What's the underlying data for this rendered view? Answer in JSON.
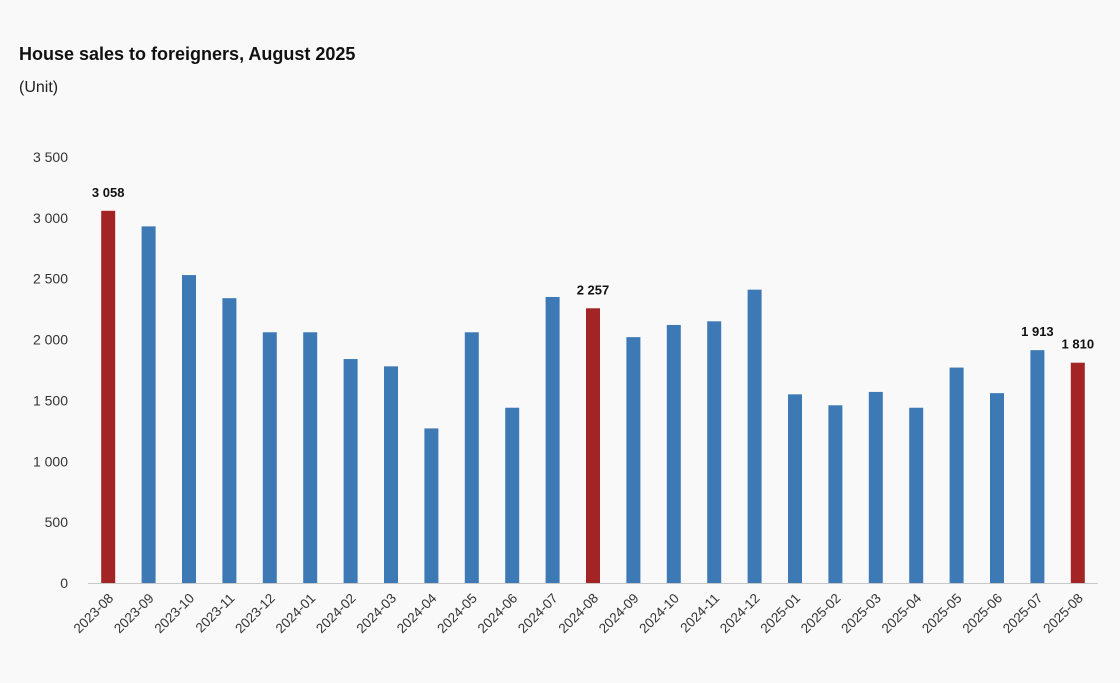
{
  "chart_data": {
    "type": "bar",
    "title": "House sales to foreigners, August 2025",
    "ylabel": "(Unit)",
    "xlabel": "",
    "ylim": [
      0,
      3500
    ],
    "yticks": [
      0,
      500,
      1000,
      1500,
      2000,
      2500,
      3000,
      3500
    ],
    "ytick_labels": [
      "0",
      "500",
      "1 000",
      "1 500",
      "2 000",
      "2 500",
      "3 000",
      "3 500"
    ],
    "grid": false,
    "categories": [
      "2023-08",
      "2023-09",
      "2023-10",
      "2023-11",
      "2023-12",
      "2024-01",
      "2024-02",
      "2024-03",
      "2024-04",
      "2024-05",
      "2024-06",
      "2024-07",
      "2024-08",
      "2024-09",
      "2024-10",
      "2024-11",
      "2024-12",
      "2025-01",
      "2025-02",
      "2025-03",
      "2025-04",
      "2025-05",
      "2025-06",
      "2025-07",
      "2025-08"
    ],
    "values": [
      3058,
      2930,
      2530,
      2340,
      2060,
      2060,
      1840,
      1780,
      1270,
      2060,
      1440,
      2350,
      2257,
      2020,
      2120,
      2150,
      2410,
      1550,
      1460,
      1570,
      1440,
      1770,
      1560,
      1913,
      1810
    ],
    "highlight": [
      0,
      12,
      24
    ],
    "data_labels": [
      {
        "index": 0,
        "text": "3 058"
      },
      {
        "index": 12,
        "text": "2 257"
      },
      {
        "index": 23,
        "text": "1 913"
      },
      {
        "index": 24,
        "text": "1 810"
      }
    ],
    "colors": {
      "bar": "#3d7ab5",
      "highlight": "#a32424",
      "axis": "#c8c8c8",
      "text": "#333333"
    }
  }
}
